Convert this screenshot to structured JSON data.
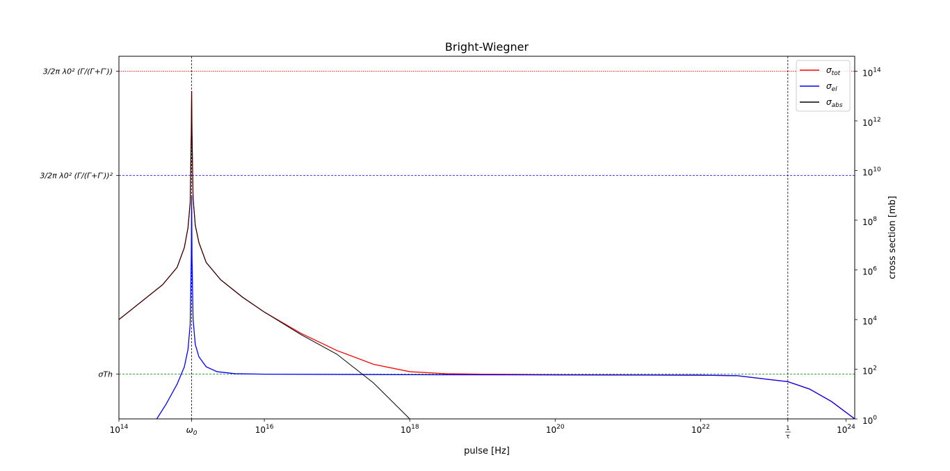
{
  "chart_data": {
    "type": "line",
    "title": "Bright-Wiegner",
    "xlabel": "pulse [Hz]",
    "ylabel_right": "cross section [mb]",
    "xscale": "log",
    "yscale": "log",
    "xlim_log10": [
      14,
      24.12
    ],
    "ylim_log10": [
      0,
      14.6
    ],
    "x_ticks": [
      {
        "log10": 14,
        "base": "10",
        "exp": "14"
      },
      {
        "log10": 15,
        "sym": "ω",
        "sub": "0"
      },
      {
        "log10": 16,
        "base": "10",
        "exp": "16"
      },
      {
        "log10": 18,
        "base": "10",
        "exp": "18"
      },
      {
        "log10": 20,
        "base": "10",
        "exp": "20"
      },
      {
        "log10": 22,
        "base": "10",
        "exp": "22"
      },
      {
        "log10": 23.2,
        "frac_num": "1",
        "frac_den": "τ"
      },
      {
        "log10": 24,
        "base": "10",
        "exp": "24"
      }
    ],
    "y_right_ticks": [
      {
        "log10": 0,
        "base": "10",
        "exp": "0"
      },
      {
        "log10": 2,
        "base": "10",
        "exp": "2"
      },
      {
        "log10": 4,
        "base": "10",
        "exp": "4"
      },
      {
        "log10": 6,
        "base": "10",
        "exp": "6"
      },
      {
        "log10": 8,
        "base": "10",
        "exp": "8"
      },
      {
        "log10": 10,
        "base": "10",
        "exp": "10"
      },
      {
        "log10": 12,
        "base": "10",
        "exp": "12"
      },
      {
        "log10": 14,
        "base": "10",
        "exp": "14"
      }
    ],
    "y_left_ticks": [
      {
        "log10": 14,
        "label": "3/2π λ0² (Γ/(Γ+Γ′))"
      },
      {
        "log10": 9.8,
        "label": "3/2π λ0² (Γ/(Γ+Γ′))²"
      },
      {
        "log10": 1.8,
        "label": "σTh"
      }
    ],
    "hlines": [
      {
        "log10": 14,
        "color": "#ff0000",
        "style": "dotted"
      },
      {
        "log10": 9.8,
        "color": "#0000ff",
        "style": "dashed"
      },
      {
        "log10": 1.8,
        "color": "#008000",
        "style": "dashed"
      }
    ],
    "vlines": [
      {
        "log10": 15,
        "color": "#000000",
        "style": "dashed"
      },
      {
        "log10": 23.2,
        "color": "#000000",
        "style": "dashed"
      }
    ],
    "series": [
      {
        "name": "tot",
        "color": "#ff0000",
        "x_log10": [
          14.0,
          14.3,
          14.6,
          14.8,
          14.9,
          14.95,
          14.98,
          14.995,
          15.0,
          15.005,
          15.02,
          15.05,
          15.1,
          15.2,
          15.4,
          15.7,
          16.0,
          16.5,
          17.0,
          17.5,
          18.0,
          18.5,
          19.0,
          20.0,
          21.0,
          22.0,
          22.5,
          22.9,
          23.2,
          23.5,
          23.8,
          24.12
        ],
        "y_log10": [
          4.0,
          4.7,
          5.4,
          6.1,
          6.9,
          7.7,
          8.7,
          11.5,
          13.2,
          11.5,
          8.9,
          7.8,
          7.1,
          6.3,
          5.6,
          4.9,
          4.3,
          3.45,
          2.75,
          2.2,
          1.9,
          1.82,
          1.8,
          1.78,
          1.77,
          1.76,
          1.74,
          1.6,
          1.5,
          1.2,
          0.7,
          0.0
        ]
      },
      {
        "name": "el",
        "color": "#0000ff",
        "x_log10": [
          14.52,
          14.65,
          14.8,
          14.9,
          14.95,
          14.98,
          14.995,
          15.0,
          15.005,
          15.02,
          15.05,
          15.1,
          15.2,
          15.35,
          15.6,
          16.0,
          18.0,
          20.0,
          22.0,
          22.5,
          22.9,
          23.2,
          23.5,
          23.8,
          24.12
        ],
        "y_log10": [
          0.0,
          0.6,
          1.4,
          2.1,
          2.8,
          3.8,
          6.5,
          9.0,
          6.5,
          4.0,
          3.0,
          2.5,
          2.1,
          1.9,
          1.82,
          1.8,
          1.78,
          1.77,
          1.76,
          1.74,
          1.6,
          1.5,
          1.2,
          0.7,
          0.0
        ]
      },
      {
        "name": "abs",
        "color": "#000000",
        "x_log10": [
          14.0,
          14.3,
          14.6,
          14.8,
          14.9,
          14.95,
          14.98,
          14.995,
          15.0,
          15.005,
          15.02,
          15.05,
          15.1,
          15.2,
          15.4,
          15.7,
          16.0,
          16.5,
          17.0,
          17.5,
          18.0
        ],
        "y_log10": [
          4.0,
          4.7,
          5.4,
          6.1,
          6.9,
          7.7,
          8.7,
          11.5,
          13.2,
          11.5,
          8.9,
          7.8,
          7.1,
          6.3,
          5.6,
          4.9,
          4.3,
          3.4,
          2.6,
          1.45,
          0.0
        ]
      }
    ],
    "legend": {
      "placement": "top-right",
      "entries": [
        {
          "sym": "σ",
          "sub": "tot",
          "color": "#ff0000"
        },
        {
          "sym": "σ",
          "sub": "el",
          "color": "#0000ff"
        },
        {
          "sym": "σ",
          "sub": "abs",
          "color": "#000000"
        }
      ]
    },
    "grid": false
  }
}
